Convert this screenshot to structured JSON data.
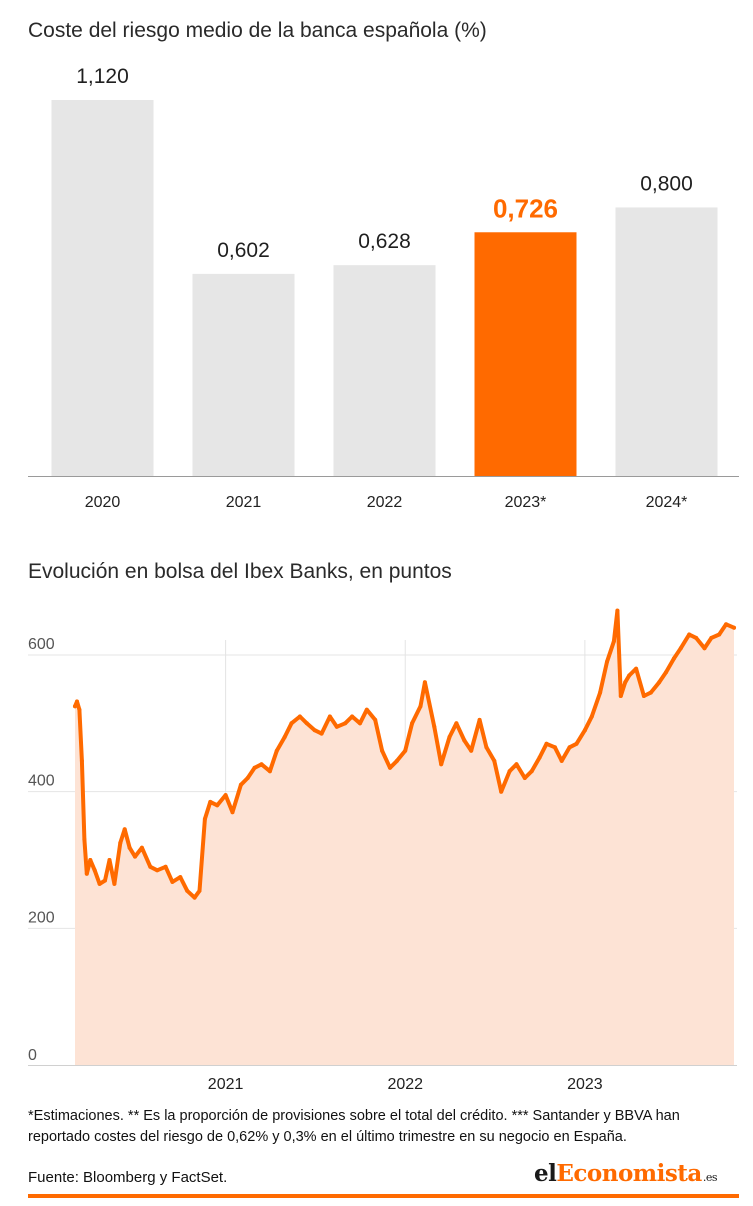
{
  "chart_data": [
    {
      "type": "bar",
      "title": "Coste del riesgo medio de la banca española (%)",
      "categories": [
        "2020",
        "2021",
        "2022",
        "2023*",
        "2024*"
      ],
      "values": [
        1.12,
        0.602,
        0.628,
        0.726,
        0.8
      ],
      "value_labels": [
        "1,120",
        "0,602",
        "0,628",
        "0,726",
        "0,800"
      ],
      "highlight_index": 3,
      "colors": {
        "bar": "#e6e6e6",
        "highlight": "#ff6a00"
      },
      "ylim": [
        0,
        1.12
      ]
    },
    {
      "type": "area",
      "title": "Evolución en bolsa del Ibex Banks, en puntos",
      "x_range": [
        "2020-03-01",
        "2023-10-31"
      ],
      "ylim": [
        0,
        655
      ],
      "yticks": [
        0,
        200,
        400,
        600
      ],
      "ytick_labels": [
        "0",
        "200",
        "400",
        "600"
      ],
      "xticks": [
        "2021-01-01",
        "2022-01-01",
        "2023-01-01"
      ],
      "xtick_labels": [
        "2021",
        "2022",
        "2023"
      ],
      "grid": true,
      "colors": {
        "line": "#ff6a00",
        "fill": "#fde3d5"
      },
      "series": [
        {
          "x": [
            "2020-03-01",
            "2020-03-05",
            "2020-03-10",
            "2020-03-15",
            "2020-03-20",
            "2020-03-25",
            "2020-04-01",
            "2020-04-10",
            "2020-04-20",
            "2020-05-01",
            "2020-05-10",
            "2020-05-20",
            "2020-06-01",
            "2020-06-10",
            "2020-06-20",
            "2020-07-01",
            "2020-07-15",
            "2020-08-01",
            "2020-08-15",
            "2020-09-01",
            "2020-09-15",
            "2020-10-01",
            "2020-10-15",
            "2020-10-30",
            "2020-11-09",
            "2020-11-20",
            "2020-12-01",
            "2020-12-15",
            "2021-01-01",
            "2021-01-15",
            "2021-02-01",
            "2021-02-15",
            "2021-03-01",
            "2021-03-15",
            "2021-04-01",
            "2021-04-15",
            "2021-05-01",
            "2021-05-15",
            "2021-06-01",
            "2021-06-15",
            "2021-07-01",
            "2021-07-15",
            "2021-08-01",
            "2021-08-15",
            "2021-09-01",
            "2021-09-15",
            "2021-10-01",
            "2021-10-15",
            "2021-11-01",
            "2021-11-15",
            "2021-12-01",
            "2021-12-15",
            "2022-01-01",
            "2022-01-15",
            "2022-02-01",
            "2022-02-10",
            "2022-03-01",
            "2022-03-15",
            "2022-04-01",
            "2022-04-15",
            "2022-05-01",
            "2022-05-15",
            "2022-06-01",
            "2022-06-15",
            "2022-07-01",
            "2022-07-15",
            "2022-08-01",
            "2022-08-15",
            "2022-09-01",
            "2022-09-15",
            "2022-10-01",
            "2022-10-15",
            "2022-11-01",
            "2022-11-15",
            "2022-12-01",
            "2022-12-15",
            "2023-01-01",
            "2023-01-15",
            "2023-02-01",
            "2023-02-15",
            "2023-03-01",
            "2023-03-08",
            "2023-03-15",
            "2023-03-24",
            "2023-04-01",
            "2023-04-15",
            "2023-05-01",
            "2023-05-15",
            "2023-06-01",
            "2023-06-15",
            "2023-07-01",
            "2023-07-15",
            "2023-08-01",
            "2023-08-15",
            "2023-09-01",
            "2023-09-15",
            "2023-10-01",
            "2023-10-15",
            "2023-10-31"
          ],
          "y": [
            525,
            532,
            520,
            445,
            330,
            280,
            300,
            285,
            265,
            270,
            300,
            265,
            325,
            345,
            318,
            305,
            318,
            290,
            285,
            290,
            268,
            275,
            255,
            245,
            255,
            360,
            385,
            380,
            395,
            370,
            410,
            420,
            435,
            440,
            430,
            460,
            480,
            500,
            510,
            500,
            490,
            485,
            510,
            495,
            500,
            510,
            500,
            520,
            505,
            460,
            435,
            445,
            460,
            500,
            525,
            560,
            495,
            440,
            480,
            500,
            475,
            460,
            505,
            465,
            445,
            400,
            430,
            440,
            420,
            430,
            450,
            470,
            465,
            445,
            465,
            470,
            490,
            510,
            545,
            590,
            620,
            665,
            540,
            560,
            570,
            580,
            540,
            545,
            560,
            575,
            595,
            610,
            630,
            625,
            610,
            625,
            630,
            645,
            640
          ]
        }
      ]
    }
  ],
  "notes": {
    "footnote": "*Estimaciones. ** Es la proporción de provisiones sobre el total del crédito. *** Santander y BBVA han reportado costes del riesgo de 0,62% y 0,3% en el último trimestre en su negocio en España.",
    "source": "Fuente: Bloomberg y FactSet."
  },
  "brand": {
    "part1": "el",
    "part2": "Economista",
    "suffix": ".es"
  }
}
